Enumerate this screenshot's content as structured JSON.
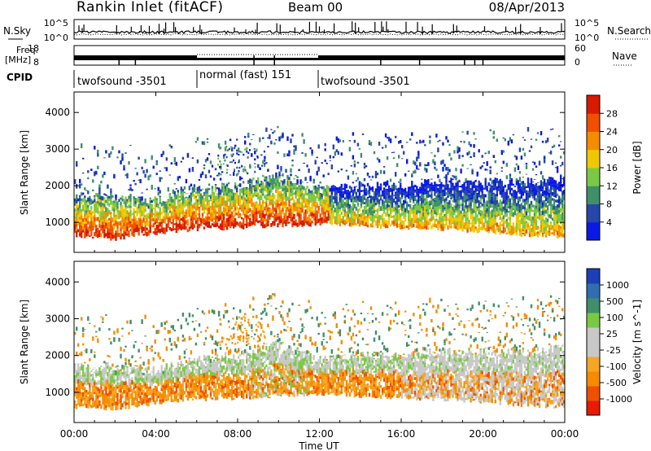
{
  "header": {
    "station": "Rankin Inlet (fitACF)",
    "beam": "Beam 00",
    "date": "08/Apr/2013"
  },
  "noise_panel": {
    "left_label": "N.Sky",
    "right_label": "N.Search",
    "left_ticks": [
      "10^5",
      "10^0"
    ],
    "right_ticks": [
      "10^5",
      "10^0"
    ]
  },
  "freq_panel": {
    "left_label_1": "Freq.",
    "left_label_2": "[MHz]",
    "right_label": "Nave",
    "left_ticks": [
      "18",
      "8"
    ],
    "right_ticks": [
      "60",
      "0"
    ]
  },
  "cpid": {
    "label": "CPID",
    "modes": [
      {
        "name": "twofsound -3501",
        "start_hour": 0,
        "end_hour": 6
      },
      {
        "name": "normal (fast) 151",
        "start_hour": 6,
        "end_hour": 12
      },
      {
        "name": "twofsound -3501",
        "start_hour": 12,
        "end_hour": 24
      }
    ]
  },
  "x_axis": {
    "label": "Time UT",
    "ticks": [
      "00:00",
      "04:00",
      "08:00",
      "12:00",
      "16:00",
      "20:00",
      "00:00"
    ]
  },
  "colors": {
    "power_scale": [
      "#0a1ae6",
      "#2646a8",
      "#3f8f6a",
      "#7ac944",
      "#f0c800",
      "#f58c00",
      "#ee5000",
      "#d81a00"
    ],
    "velocity_scale": [
      "#e81a00",
      "#ee5000",
      "#f58c00",
      "#f5a623",
      "#c8c8c8",
      "#c8c8c8",
      "#7ac944",
      "#3f8f6a",
      "#2f6fb0",
      "#1c3fb8"
    ]
  },
  "chart_data": [
    {
      "type": "heatmap",
      "name": "power",
      "ylabel": "Slant Range [km]",
      "xlabel": "",
      "ylim": [
        180,
        4560
      ],
      "xlim": [
        0,
        24
      ],
      "y_ticks": [
        "1000",
        "2000",
        "3000",
        "4000"
      ],
      "colorbar": {
        "label": "Power [dB]",
        "ticks": [
          "28",
          "24",
          "20",
          "16",
          "12",
          "8",
          "4"
        ],
        "range": [
          0,
          32
        ]
      },
      "band_profile": {
        "hours": [
          0,
          2,
          4,
          6,
          8,
          10,
          12,
          14,
          16,
          18,
          20,
          22,
          24
        ],
        "lower_km": [
          600,
          550,
          700,
          800,
          850,
          900,
          950,
          900,
          850,
          800,
          750,
          650,
          600
        ],
        "upper_km": [
          1700,
          1700,
          1600,
          1900,
          2000,
          2300,
          1900,
          2000,
          2000,
          2100,
          2100,
          2100,
          2200
        ]
      }
    },
    {
      "type": "heatmap",
      "name": "velocity",
      "ylabel": "Slant Range [km]",
      "xlabel": "Time UT",
      "ylim": [
        180,
        4560
      ],
      "xlim": [
        0,
        24
      ],
      "y_ticks": [
        "1000",
        "2000",
        "3000",
        "4000"
      ],
      "colorbar": {
        "label": "Velocity [m s^-1]",
        "ticks": [
          "1000",
          "500",
          "100",
          "25",
          "-25",
          "-100",
          "-500",
          "-1000"
        ],
        "range": [
          -1000,
          1000
        ]
      }
    }
  ]
}
